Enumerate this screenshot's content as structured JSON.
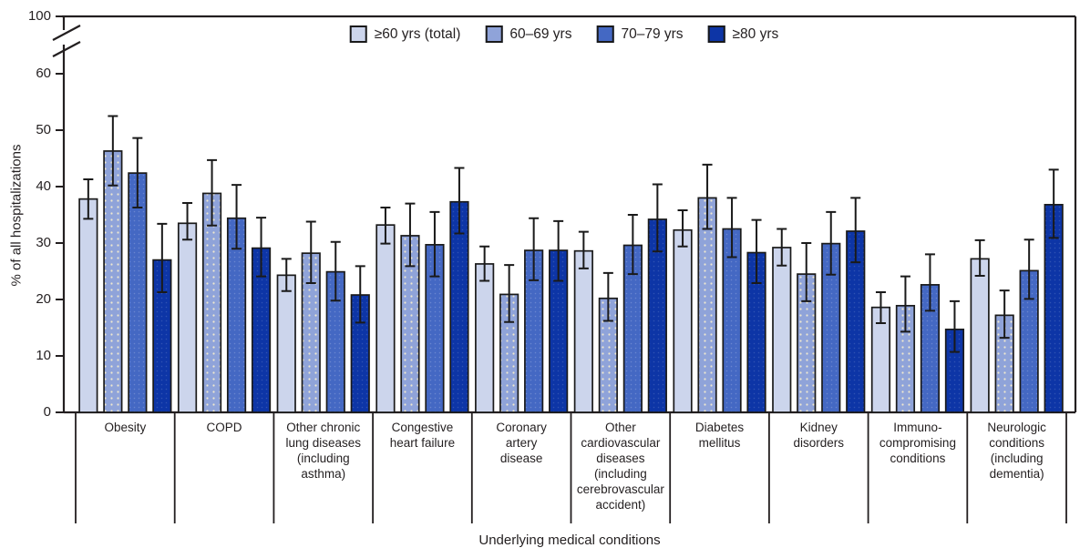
{
  "chart_data": {
    "type": "bar",
    "title": "",
    "xlabel": "Underlying medical conditions",
    "ylabel": "% of all hospitalizations",
    "legend_position": "top",
    "grid": false,
    "error_bars": true,
    "y_axis": {
      "ticks": [
        0,
        10,
        20,
        30,
        40,
        50,
        60
      ],
      "break_top_label": "100",
      "axis_break": true,
      "ylim": [
        0,
        60
      ]
    },
    "categories": [
      "Obesity",
      "COPD",
      "Other chronic\nlung diseases\n(including\nasthma)",
      "Congestive\nheart failure",
      "Coronary\nartery\ndisease",
      "Other\ncardiovascular\ndiseases\n(including\ncerebrovascular\naccident)",
      "Diabetes\nmellitus",
      "Kidney\ndisorders",
      "Immuno-\ncompromising\nconditions",
      "Neurologic\nconditions\n(including\ndementia)"
    ],
    "series": [
      {
        "name": "≥60 yrs (total)",
        "color": "#CCD5EC",
        "values": [
          37.8,
          33.5,
          24.3,
          33.2,
          26.3,
          28.6,
          32.3,
          29.2,
          18.6,
          27.2
        ],
        "ci_low": [
          34.3,
          30.6,
          21.5,
          29.9,
          23.3,
          25.5,
          29.4,
          26.0,
          15.8,
          24.2
        ],
        "ci_high": [
          41.3,
          37.1,
          27.2,
          36.3,
          29.4,
          32.0,
          35.8,
          32.5,
          21.3,
          30.5
        ]
      },
      {
        "name": "60–69 yrs",
        "color": "#8FA3D9",
        "values": [
          46.3,
          38.8,
          28.2,
          31.3,
          20.9,
          20.2,
          38.0,
          24.5,
          18.9,
          17.2
        ],
        "ci_low": [
          40.2,
          33.1,
          22.9,
          25.9,
          16.0,
          16.2,
          32.5,
          19.7,
          14.3,
          13.2
        ],
        "ci_high": [
          52.5,
          44.7,
          33.8,
          37.0,
          26.1,
          24.7,
          43.9,
          30.0,
          24.1,
          21.6
        ]
      },
      {
        "name": "70–79 yrs",
        "color": "#4468C3",
        "values": [
          42.4,
          34.4,
          24.9,
          29.7,
          28.7,
          29.6,
          32.5,
          29.9,
          22.6,
          25.1
        ],
        "ci_low": [
          36.3,
          29.0,
          19.8,
          24.1,
          23.4,
          24.5,
          27.5,
          24.4,
          18.0,
          20.1
        ],
        "ci_high": [
          48.6,
          40.3,
          30.2,
          35.5,
          34.4,
          35.0,
          38.0,
          35.5,
          28.0,
          30.6
        ]
      },
      {
        "name": "≥80 yrs",
        "color": "#0D35A6",
        "values": [
          27.0,
          29.1,
          20.8,
          37.3,
          28.7,
          34.2,
          28.3,
          32.1,
          14.7,
          36.8
        ],
        "ci_low": [
          21.3,
          24.1,
          15.9,
          31.7,
          23.3,
          28.5,
          22.9,
          26.6,
          10.7,
          30.9
        ],
        "ci_high": [
          33.4,
          34.5,
          25.9,
          43.3,
          33.9,
          40.4,
          34.1,
          38.0,
          19.7,
          43.0
        ]
      }
    ]
  }
}
